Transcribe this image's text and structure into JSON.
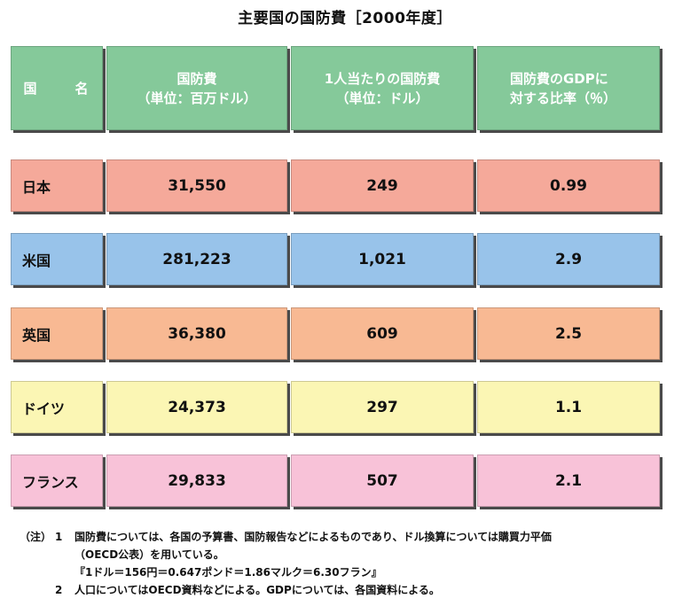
{
  "title": "主要国の国防費［2000年度］",
  "colors": {
    "header": "#85c99a",
    "japan": "#f5a99a",
    "usa": "#98c3ea",
    "uk": "#f8b993",
    "germany": "#fbf6b4",
    "france": "#f8c2d8"
  },
  "chart_data": {
    "type": "table",
    "title": "主要国の国防費［2000年度］",
    "columns": [
      {
        "line1": "国　名",
        "line2": ""
      },
      {
        "line1": "国防費",
        "line2": "（単位：百万ドル）"
      },
      {
        "line1": "1人当たりの国防費",
        "line2": "（単位：ドル）"
      },
      {
        "line1": "国防費のGDPに",
        "line2": "対する比率（％）"
      }
    ],
    "rows": [
      {
        "country": "日本",
        "defense": "31,550",
        "per_capita": "249",
        "gdp_ratio": "0.99"
      },
      {
        "country": "米国",
        "defense": "281,223",
        "per_capita": "1,021",
        "gdp_ratio": "2.9"
      },
      {
        "country": "英国",
        "defense": "36,380",
        "per_capita": "609",
        "gdp_ratio": "2.5"
      },
      {
        "country": "ドイツ",
        "defense": "24,373",
        "per_capita": "297",
        "gdp_ratio": "1.1"
      },
      {
        "country": "フランス",
        "defense": "29,833",
        "per_capita": "507",
        "gdp_ratio": "2.1"
      }
    ]
  },
  "notes": {
    "prefix": "（注）",
    "items": [
      {
        "num": "1",
        "lines": [
          "国防費については、各国の予算書、国防報告などによるものであり、ドル換算については購買力平価",
          "（OECD公表）を用いている。",
          "『1ドル＝156円＝0.647ポンド＝1.86マルク＝6.30フラン』"
        ]
      },
      {
        "num": "2",
        "lines": [
          "人口についてはOECD資料などによる。GDPについては、各国資料による。"
        ]
      }
    ]
  }
}
